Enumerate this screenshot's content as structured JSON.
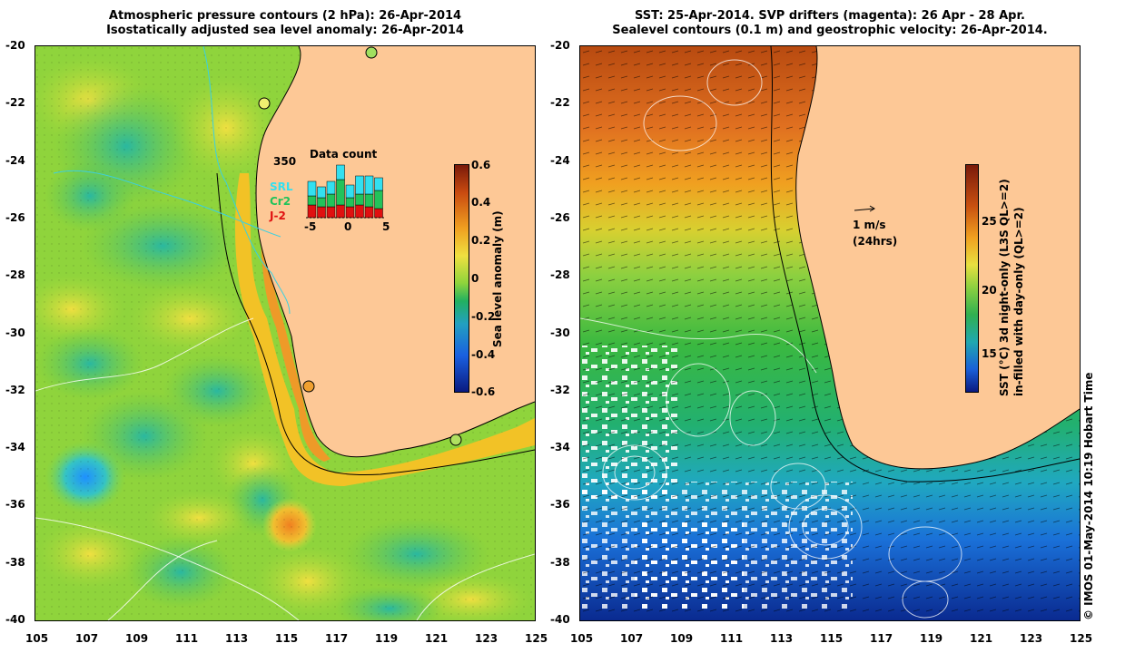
{
  "left_panel": {
    "title_line1": "Atmospheric pressure contours (2 hPa): 26-Apr-2014",
    "title_line2": "Isostatically adjusted sea level anomaly: 26-Apr-2014",
    "colorbar": {
      "label": "Sea level anomaly (m)",
      "ticks": [
        "0.6",
        "0.4",
        "0.2",
        "0",
        "-0.2",
        "-0.4",
        "-0.6"
      ]
    },
    "inset": {
      "title": "Data count",
      "ymax_label": "350",
      "legend": [
        {
          "label": "SRL",
          "color": "#33e0f0"
        },
        {
          "label": "Cr2",
          "color": "#22c35a"
        },
        {
          "label": "J-2",
          "color": "#e01010"
        }
      ],
      "x_ticks": [
        "-5",
        "0",
        "5"
      ]
    }
  },
  "right_panel": {
    "title_line1": "SST: 25-Apr-2014. SVP drifters (magenta): 26 Apr - 28 Apr.",
    "title_line2": "Sealevel contours (0.1 m) and geostrophic velocity: 26-Apr-2014.",
    "arrow_label": "1 m/s",
    "arrow_sublabel": "(24hrs)",
    "colorbar": {
      "label_line1": "SST (°C)  3d night-only (L3S QL>=2)",
      "label_line2": "in-filled with day-only (QL>=2)",
      "ticks": [
        "25",
        "20",
        "15"
      ]
    }
  },
  "axes": {
    "y_ticks": [
      "-20",
      "-22",
      "-24",
      "-26",
      "-28",
      "-30",
      "-32",
      "-34",
      "-36",
      "-38",
      "-40"
    ],
    "x_ticks": [
      "105",
      "107",
      "109",
      "111",
      "113",
      "115",
      "117",
      "119",
      "121",
      "123",
      "125"
    ]
  },
  "credit": "© IMOS 01-May-2014 10:19 Hobart Time"
}
